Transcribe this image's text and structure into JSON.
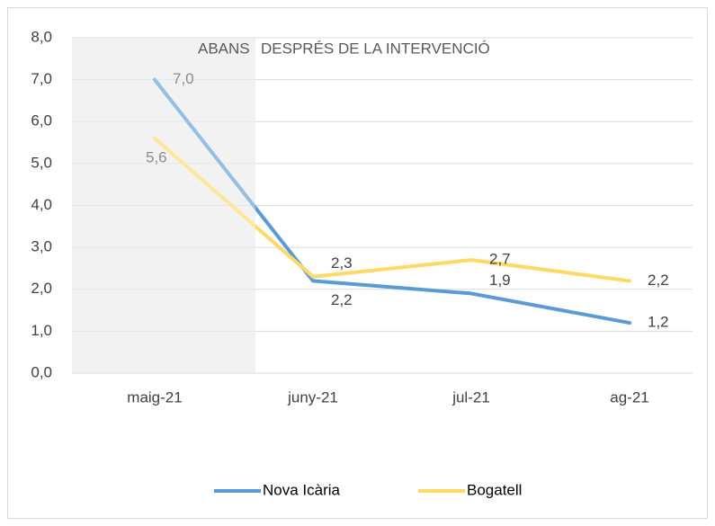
{
  "chart_data": {
    "type": "line",
    "categories": [
      "maig-21",
      "juny-21",
      "jul-21",
      "ag-21"
    ],
    "series": [
      {
        "name": "Nova Icària",
        "color": "#5b9bd5",
        "values": [
          7.0,
          2.2,
          1.9,
          1.2
        ],
        "value_labels": [
          "7,0",
          "2,2",
          "1,9",
          "1,2"
        ]
      },
      {
        "name": "Bogatell",
        "color": "#ffd966",
        "values": [
          5.6,
          2.3,
          2.7,
          2.2
        ],
        "value_labels": [
          "5,6",
          "2,3",
          "2,7",
          "2,2"
        ]
      }
    ],
    "annotations": [
      "ABANS",
      "DESPRÉS DE LA INTERVENCIÓ"
    ],
    "ylim": [
      0,
      8
    ],
    "yticks": [
      {
        "value": 0,
        "label": "0,0"
      },
      {
        "value": 1,
        "label": "1,0"
      },
      {
        "value": 2,
        "label": "2,0"
      },
      {
        "value": 3,
        "label": "3,0"
      },
      {
        "value": 4,
        "label": "4,0"
      },
      {
        "value": 5,
        "label": "5,0"
      },
      {
        "value": 6,
        "label": "6,0"
      },
      {
        "value": 7,
        "label": "7,0"
      },
      {
        "value": 8,
        "label": "8,0"
      }
    ],
    "grid": true,
    "legend": "bottom"
  }
}
